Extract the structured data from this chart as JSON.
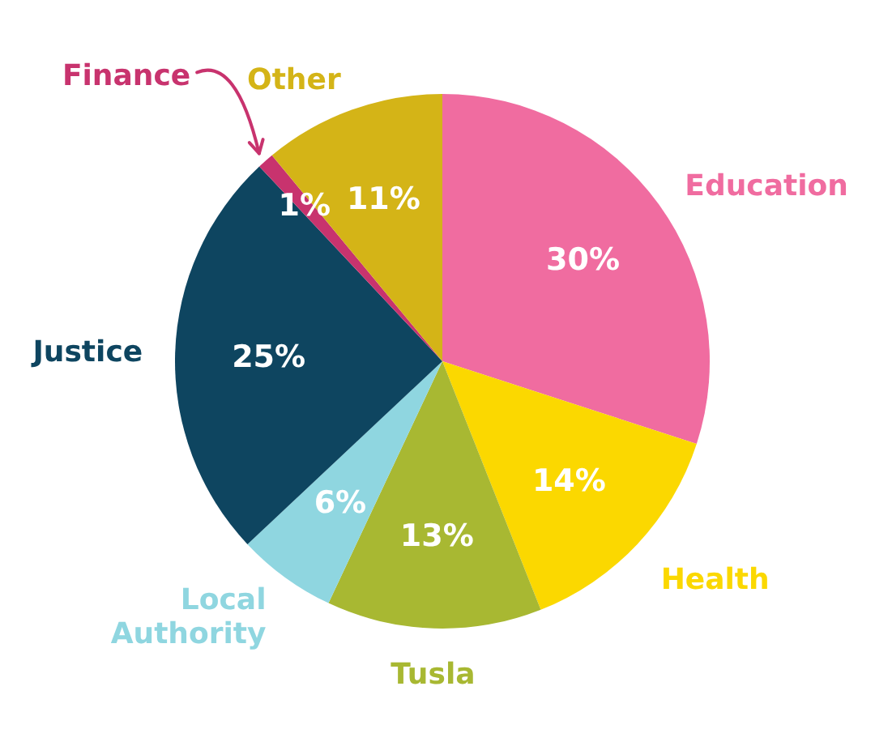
{
  "chart_data": {
    "type": "pie",
    "categories": [
      "Education",
      "Health",
      "Tusla",
      "Local Authority",
      "Justice",
      "Finance",
      "Other"
    ],
    "values": [
      30,
      14,
      13,
      6,
      25,
      1,
      11
    ],
    "colors": [
      "#f06ca0",
      "#fbd800",
      "#a8b832",
      "#8fd6e0",
      "#0e4560",
      "#c8336e",
      "#d4b417"
    ],
    "value_labels": [
      "30%",
      "14%",
      "13%",
      "6%",
      "25%",
      "1%",
      "11%"
    ]
  }
}
